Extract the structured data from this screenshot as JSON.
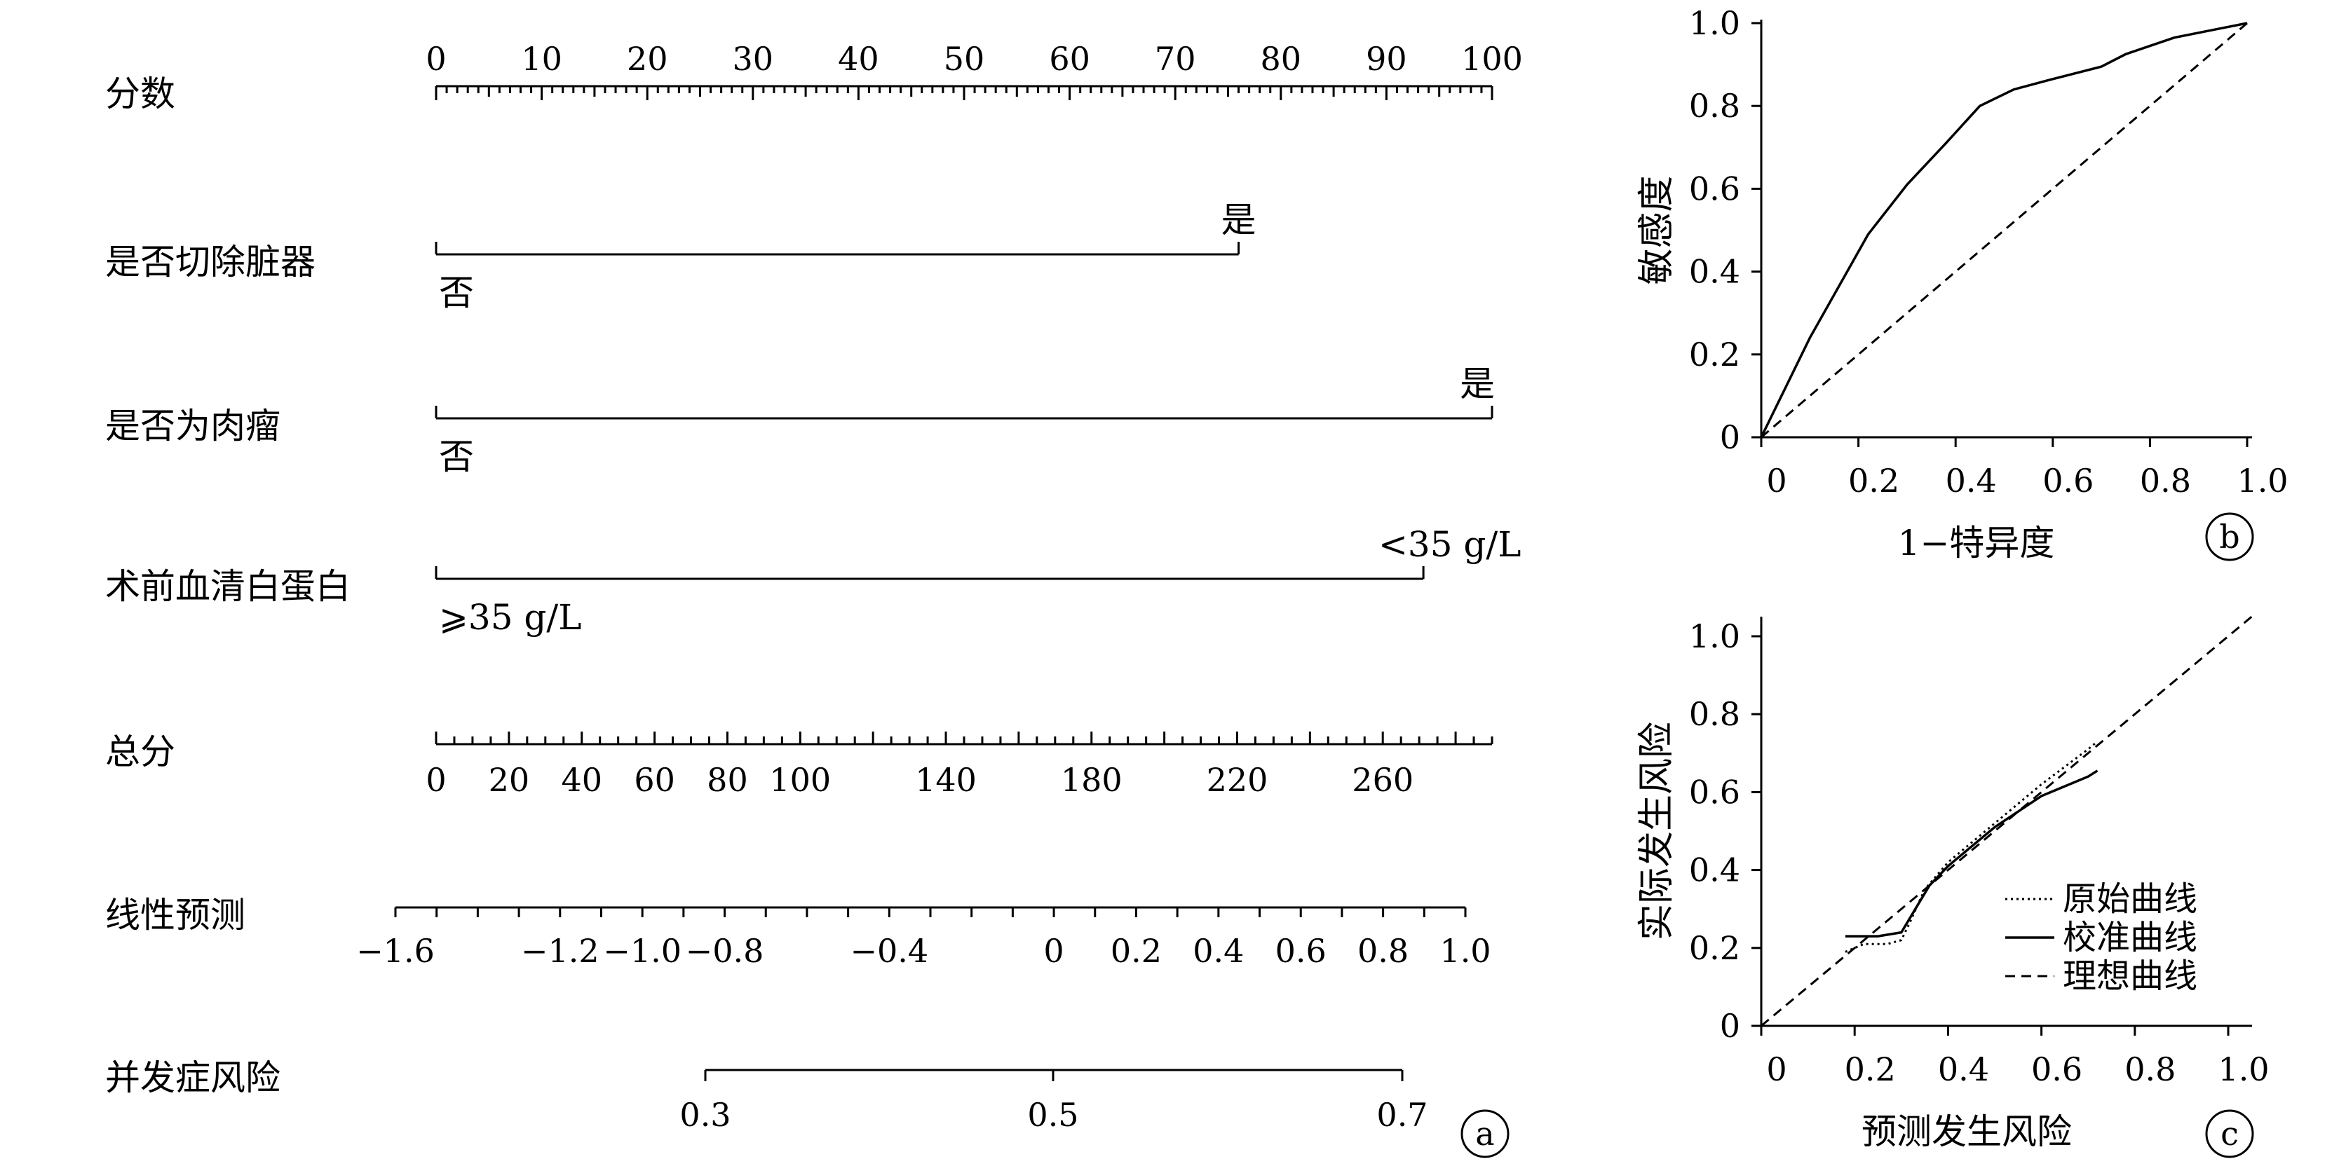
{
  "chart_data": [
    {
      "type": "nomogram",
      "panel_label": "a",
      "rows": [
        {
          "label": "分数",
          "kind": "axis",
          "ticks": [
            0,
            10,
            20,
            30,
            40,
            50,
            60,
            70,
            80,
            90,
            100
          ]
        },
        {
          "label": "是否切除脏器",
          "kind": "variable",
          "levels": [
            {
              "text": "否",
              "points": 0
            },
            {
              "text": "是",
              "points": 76
            }
          ]
        },
        {
          "label": "是否为肉瘤",
          "kind": "variable",
          "levels": [
            {
              "text": "否",
              "points": 0
            },
            {
              "text": "是",
              "points": 100
            }
          ]
        },
        {
          "label": "术前血清白蛋白",
          "kind": "variable",
          "levels": [
            {
              "text": "⩾35 g/L",
              "points": 0
            },
            {
              "text": "<35 g/L",
              "points": 93.5
            }
          ]
        },
        {
          "label": "总分",
          "kind": "axis",
          "range": [
            0,
            290
          ],
          "ticks": [
            0,
            20,
            40,
            60,
            80,
            100,
            140,
            180,
            220,
            260
          ]
        },
        {
          "label": "线性预测",
          "kind": "axis",
          "range": [
            -1.6,
            1.0
          ],
          "ticks": [
            -1.6,
            -1.2,
            -1.0,
            -0.8,
            -0.4,
            0,
            0.2,
            0.4,
            0.6,
            0.8,
            1.0
          ],
          "tick_labels": [
            "−1.6",
            "−1.2",
            "−1.0",
            "−0.8",
            "−0.4",
            "0",
            "0.2",
            "0.4",
            "0.6",
            "0.8",
            "1.0"
          ]
        },
        {
          "label": "并发症风险",
          "kind": "axis",
          "ticks": [
            0.3,
            0.5,
            0.7
          ],
          "tick_labels": [
            "0.3",
            "0.5",
            "0.7"
          ]
        }
      ]
    },
    {
      "type": "line",
      "panel_label": "b",
      "xlabel": "1−特异度",
      "ylabel": "敏感度",
      "xlim": [
        0,
        1
      ],
      "ylim": [
        0,
        1
      ],
      "xticks": [
        "0",
        "0.2",
        "0.4",
        "0.6",
        "0.8",
        "1.0"
      ],
      "yticks": [
        "0",
        "0.2",
        "0.4",
        "0.6",
        "0.8",
        "1.0"
      ],
      "series": [
        {
          "style": "solid",
          "x": [
            0,
            0.1,
            0.22,
            0.3,
            0.38,
            0.45,
            0.52,
            0.6,
            0.7,
            0.75,
            0.85,
            1.0
          ],
          "y": [
            0,
            0.24,
            0.49,
            0.61,
            0.71,
            0.8,
            0.84,
            0.865,
            0.895,
            0.925,
            0.965,
            1.0
          ]
        },
        {
          "style": "dashed",
          "x": [
            0,
            1
          ],
          "y": [
            0,
            1
          ]
        }
      ]
    },
    {
      "type": "line",
      "panel_label": "c",
      "xlabel": "预测发生风险",
      "ylabel": "实际发生风险",
      "xlim": [
        0,
        1.0
      ],
      "ylim": [
        0,
        1.0
      ],
      "xticks": [
        "0",
        "0.2",
        "0.4",
        "0.6",
        "0.8",
        "1.0"
      ],
      "yticks": [
        "0",
        "0.2",
        "0.4",
        "0.6",
        "0.8",
        "1.0"
      ],
      "legend_position": "bottom-right",
      "series": [
        {
          "name": "原始曲线",
          "style": "dotted",
          "x": [
            0.18,
            0.22,
            0.27,
            0.3,
            0.32,
            0.35,
            0.4,
            0.5,
            0.6,
            0.7,
            0.72
          ],
          "y": [
            0.19,
            0.21,
            0.21,
            0.22,
            0.27,
            0.35,
            0.42,
            0.52,
            0.62,
            0.71,
            0.73
          ]
        },
        {
          "name": "校准曲线",
          "style": "solid",
          "x": [
            0.18,
            0.25,
            0.3,
            0.33,
            0.36,
            0.4,
            0.5,
            0.6,
            0.7,
            0.72
          ],
          "y": [
            0.23,
            0.23,
            0.24,
            0.3,
            0.36,
            0.41,
            0.51,
            0.59,
            0.64,
            0.655
          ]
        },
        {
          "name": "理想曲线",
          "style": "dashed",
          "x": [
            0,
            1.05
          ],
          "y": [
            0,
            1.05
          ]
        }
      ]
    }
  ]
}
